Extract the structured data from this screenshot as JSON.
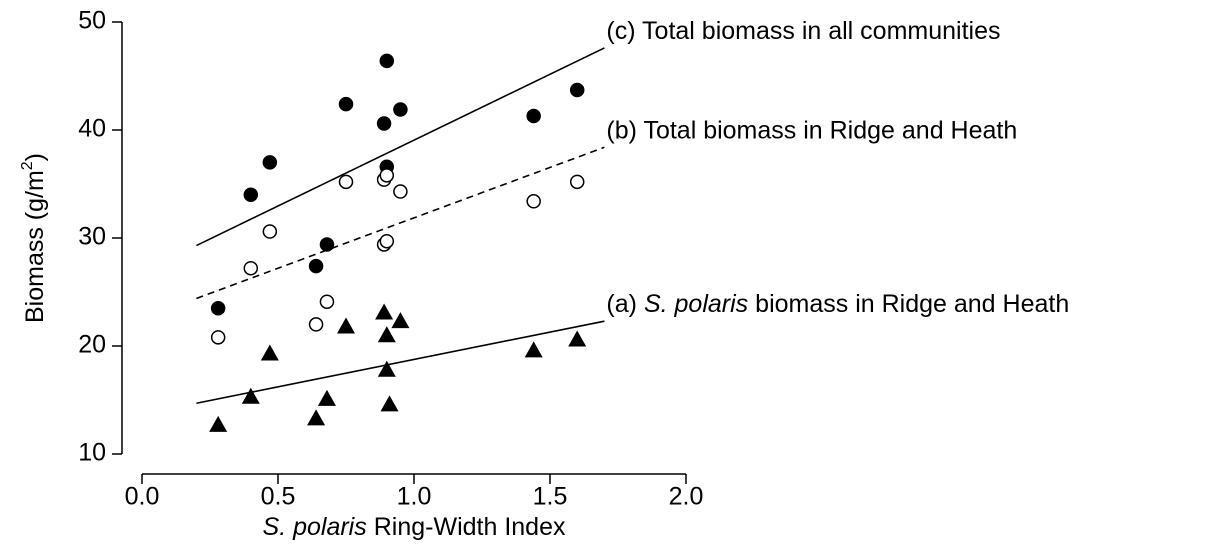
{
  "chart_data": {
    "type": "scatter",
    "xlabel": [
      "S. polaris",
      "Ring-Width Index"
    ],
    "ylabel": [
      "Biomass (g/m",
      "2",
      ")"
    ],
    "xlim": [
      0.0,
      2.0
    ],
    "xticks": [
      {
        "value": 0,
        "label": "0.0"
      },
      {
        "value": 0.5,
        "label": "0.5"
      },
      {
        "value": 1,
        "label": "1.0"
      },
      {
        "value": 1.5,
        "label": "1.5"
      },
      {
        "value": 2,
        "label": "2.0"
      }
    ],
    "ylim": [
      10,
      50
    ],
    "yticks": [
      10,
      20,
      30,
      40,
      50
    ],
    "series": [
      {
        "marker": "circle-filled",
        "color": "#000000",
        "x": [
          0.28,
          0.4,
          0.47,
          0.68,
          0.64,
          0.75,
          0.89,
          0.9,
          0.9,
          0.95,
          1.44,
          1.6
        ],
        "values": [
          23.5,
          34.0,
          37.0,
          29.4,
          27.4,
          42.4,
          40.6,
          46.4,
          36.6,
          41.9,
          41.3,
          43.7
        ]
      },
      {
        "marker": "circle-open",
        "color": "#000000",
        "x": [
          0.28,
          0.4,
          0.47,
          0.68,
          0.64,
          0.75,
          0.89,
          0.9,
          0.89,
          0.9,
          0.95,
          1.44,
          1.6
        ],
        "values": [
          20.8,
          27.2,
          30.6,
          24.1,
          22.0,
          35.2,
          35.4,
          35.8,
          29.4,
          29.7,
          34.3,
          33.4,
          35.2
        ]
      },
      {
        "marker": "triangle",
        "color": "#000000",
        "x": [
          0.28,
          0.4,
          0.47,
          0.68,
          0.64,
          0.75,
          0.89,
          0.9,
          0.9,
          0.91,
          0.95,
          1.44,
          1.6
        ],
        "values": [
          12.7,
          15.3,
          19.3,
          15.1,
          13.3,
          21.8,
          23.1,
          21.0,
          17.8,
          14.6,
          22.3,
          19.6,
          20.6
        ]
      }
    ],
    "fits": [
      {
        "label": [
          "(c) Total biomass in all communities"
        ],
        "style": "solid",
        "x": [
          0.2,
          1.7
        ],
        "values": [
          29.3,
          47.6
        ]
      },
      {
        "label": [
          "(b) Total biomass in Ridge and Heath"
        ],
        "style": "dashed",
        "x": [
          0.2,
          1.7
        ],
        "values": [
          24.4,
          38.4
        ]
      },
      {
        "label": [
          "(a)",
          "S. polaris",
          "biomass in Ridge and Heath"
        ],
        "italic_part": 1,
        "style": "solid",
        "x": [
          0.2,
          1.7
        ],
        "values": [
          14.7,
          22.3
        ]
      }
    ]
  }
}
